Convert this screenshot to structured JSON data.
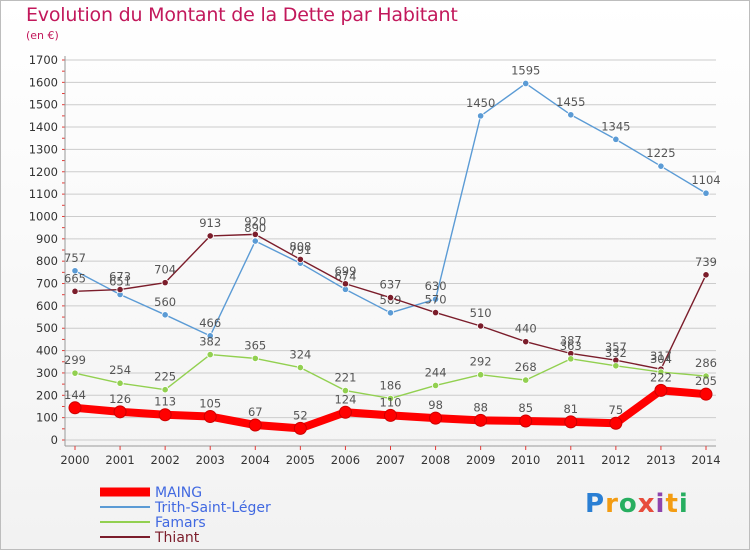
{
  "header": {
    "title": "Evolution du Montant de la Dette par Habitant",
    "subtitle": "(en €)"
  },
  "logo": {
    "text": "Proxiti"
  },
  "colors": {
    "title": "#c2185b",
    "grid": "#cccccc",
    "axis_ticks": "#e53935"
  },
  "chart_data": {
    "type": "line",
    "title": "Evolution du Montant de la Dette par Habitant",
    "subtitle": "(en €)",
    "x": [
      2000,
      2001,
      2002,
      2003,
      2004,
      2005,
      2006,
      2007,
      2008,
      2009,
      2010,
      2011,
      2012,
      2013,
      2014
    ],
    "ylim": [
      0,
      1700
    ],
    "yticks": [
      0,
      100,
      200,
      300,
      400,
      500,
      600,
      700,
      800,
      900,
      1000,
      1100,
      1200,
      1300,
      1400,
      1500,
      1600,
      1700
    ],
    "grid": "horizontal",
    "legend_position": "bottom-left",
    "series": [
      {
        "name": "Trith-Saint-Léger",
        "color": "#5b9bd5",
        "values": [
          757,
          651,
          560,
          466,
          890,
          791,
          674,
          569,
          630,
          1450,
          1595,
          1455,
          1345,
          1225,
          1104
        ]
      },
      {
        "name": "Thiant",
        "color": "#7b1d2b",
        "values": [
          665,
          673,
          704,
          913,
          920,
          808,
          699,
          637,
          570,
          510,
          440,
          387,
          357,
          317,
          739
        ]
      },
      {
        "name": "Famars",
        "color": "#92d050",
        "values": [
          299,
          254,
          225,
          382,
          365,
          324,
          221,
          186,
          244,
          292,
          268,
          363,
          332,
          304,
          286
        ]
      },
      {
        "name": "MAING",
        "color": "#ff0000",
        "values": [
          144,
          126,
          113,
          105,
          67,
          52,
          124,
          110,
          98,
          88,
          85,
          81,
          75,
          222,
          205
        ]
      }
    ],
    "legend_order": [
      "MAING",
      "Trith-Saint-Léger",
      "Famars",
      "Thiant"
    ]
  }
}
